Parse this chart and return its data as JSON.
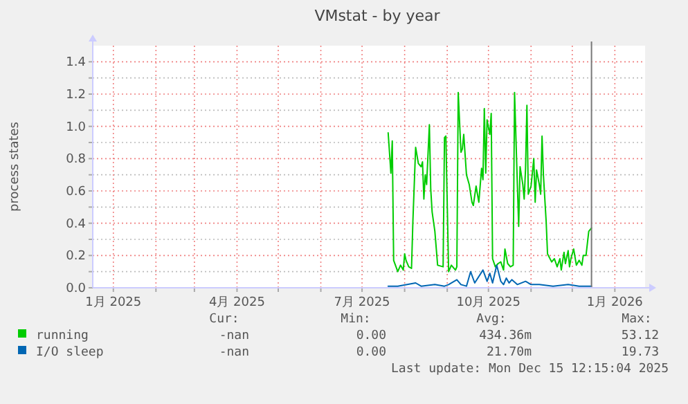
{
  "chart_data": {
    "type": "line",
    "title": "VMstat - by year",
    "ylabel": "process states",
    "xlim": [
      "2024-12-17",
      "2026-01-23"
    ],
    "xticks": [
      {
        "value": "2025-01-01",
        "label": "1月 2025"
      },
      {
        "value": "2025-02-01",
        "label": null
      },
      {
        "value": "2025-03-01",
        "label": null
      },
      {
        "value": "2025-04-01",
        "label": "4月 2025"
      },
      {
        "value": "2025-05-01",
        "label": null
      },
      {
        "value": "2025-06-01",
        "label": null
      },
      {
        "value": "2025-07-01",
        "label": "7月 2025"
      },
      {
        "value": "2025-08-01",
        "label": null
      },
      {
        "value": "2025-09-01",
        "label": null
      },
      {
        "value": "2025-10-01",
        "label": "10月 2025"
      },
      {
        "value": "2025-11-01",
        "label": null
      },
      {
        "value": "2025-12-01",
        "label": null
      },
      {
        "value": "2026-01-01",
        "label": "1月 2026"
      }
    ],
    "ylim": [
      0,
      1.5
    ],
    "yticks": [
      {
        "value": 0,
        "label": "0.0"
      },
      {
        "value": 0.1,
        "label": null
      },
      {
        "value": 0.2,
        "label": "0.2"
      },
      {
        "value": 0.3,
        "label": null
      },
      {
        "value": 0.4,
        "label": "0.4"
      },
      {
        "value": 0.5,
        "label": null
      },
      {
        "value": 0.6,
        "label": "0.6"
      },
      {
        "value": 0.7,
        "label": null
      },
      {
        "value": 0.8,
        "label": "0.8"
      },
      {
        "value": 0.9,
        "label": null
      },
      {
        "value": 1.0,
        "label": "1.0"
      },
      {
        "value": 1.1,
        "label": null
      },
      {
        "value": 1.2,
        "label": "1.2"
      },
      {
        "value": 1.3,
        "label": null
      },
      {
        "value": 1.4,
        "label": "1.4"
      }
    ],
    "grid": true,
    "legend": "bottom",
    "ref_lines": [
      {
        "axis": "x",
        "value": "2025-12-15",
        "color": "#777777"
      }
    ],
    "series": [
      {
        "name": "running",
        "color": "#00cc00",
        "x": [
          "2025-07-20",
          "2025-07-22",
          "2025-07-23",
          "2025-07-24",
          "2025-07-27",
          "2025-07-29",
          "2025-07-31",
          "2025-08-01",
          "2025-08-02",
          "2025-08-04",
          "2025-08-06",
          "2025-08-07",
          "2025-08-09",
          "2025-08-11",
          "2025-08-13",
          "2025-08-14",
          "2025-08-15",
          "2025-08-16",
          "2025-08-17",
          "2025-08-19",
          "2025-08-20",
          "2025-08-21",
          "2025-08-23",
          "2025-08-25",
          "2025-08-29",
          "2025-08-30",
          "2025-08-31",
          "2025-09-02",
          "2025-09-04",
          "2025-09-07",
          "2025-09-08",
          "2025-09-09",
          "2025-09-11",
          "2025-09-12",
          "2025-09-13",
          "2025-09-15",
          "2025-09-17",
          "2025-09-19",
          "2025-09-20",
          "2025-09-22",
          "2025-09-24",
          "2025-09-26",
          "2025-09-27",
          "2025-09-28",
          "2025-09-29",
          "2025-09-30",
          "2025-10-02",
          "2025-10-03",
          "2025-10-04",
          "2025-10-06",
          "2025-10-08",
          "2025-10-10",
          "2025-10-12",
          "2025-10-13",
          "2025-10-15",
          "2025-10-17",
          "2025-10-19",
          "2025-10-20",
          "2025-10-22",
          "2025-10-23",
          "2025-10-24",
          "2025-10-26",
          "2025-10-27",
          "2025-10-28",
          "2025-10-29",
          "2025-10-30",
          "2025-11-01",
          "2025-11-03",
          "2025-11-04",
          "2025-11-05",
          "2025-11-07",
          "2025-11-08",
          "2025-11-09",
          "2025-11-10",
          "2025-11-12",
          "2025-11-13",
          "2025-11-16",
          "2025-11-18",
          "2025-11-20",
          "2025-11-22",
          "2025-11-23",
          "2025-11-25",
          "2025-11-26",
          "2025-11-28",
          "2025-11-29",
          "2025-11-30",
          "2025-12-02",
          "2025-12-04",
          "2025-12-06",
          "2025-12-08",
          "2025-12-09",
          "2025-12-11",
          "2025-12-13",
          "2025-12-15"
        ],
        "values": [
          0.96,
          0.71,
          0.91,
          0.17,
          0.1,
          0.14,
          0.11,
          0.21,
          0.17,
          0.13,
          0.12,
          0.41,
          0.87,
          0.77,
          0.75,
          0.78,
          0.55,
          0.7,
          0.64,
          1.01,
          0.61,
          0.47,
          0.35,
          0.14,
          0.13,
          0.93,
          0.94,
          0.1,
          0.14,
          0.11,
          0.13,
          1.21,
          0.84,
          0.86,
          0.95,
          0.7,
          0.64,
          0.53,
          0.51,
          0.63,
          0.53,
          0.74,
          0.67,
          1.11,
          0.71,
          1.04,
          0.95,
          1.08,
          0.18,
          0.13,
          0.15,
          0.16,
          0.11,
          0.24,
          0.15,
          0.13,
          0.14,
          1.21,
          0.65,
          0.38,
          0.75,
          0.64,
          0.55,
          0.74,
          1.13,
          0.58,
          0.63,
          0.8,
          0.53,
          0.73,
          0.64,
          0.58,
          0.94,
          0.7,
          0.41,
          0.21,
          0.16,
          0.18,
          0.13,
          0.18,
          0.11,
          0.22,
          0.15,
          0.23,
          0.13,
          0.18,
          0.24,
          0.14,
          0.17,
          0.14,
          0.2,
          0.2,
          0.35,
          0.37
        ]
      },
      {
        "name": "I/O sleep",
        "color": "#0066b3",
        "x": [
          "2025-07-20",
          "2025-07-27",
          "2025-08-09",
          "2025-08-13",
          "2025-08-23",
          "2025-08-30",
          "2025-09-02",
          "2025-09-08",
          "2025-09-11",
          "2025-09-15",
          "2025-09-18",
          "2025-09-21",
          "2025-09-27",
          "2025-09-30",
          "2025-10-02",
          "2025-10-04",
          "2025-10-07",
          "2025-10-10",
          "2025-10-12",
          "2025-10-14",
          "2025-10-16",
          "2025-10-18",
          "2025-10-22",
          "2025-10-28",
          "2025-11-01",
          "2025-11-07",
          "2025-11-17",
          "2025-11-28",
          "2025-12-06",
          "2025-12-15"
        ],
        "values": [
          0.01,
          0.01,
          0.03,
          0.01,
          0.02,
          0.01,
          0.02,
          0.05,
          0.02,
          0.01,
          0.1,
          0.03,
          0.11,
          0.04,
          0.09,
          0.03,
          0.14,
          0.04,
          0.02,
          0.06,
          0.03,
          0.05,
          0.02,
          0.04,
          0.02,
          0.02,
          0.01,
          0.02,
          0.01,
          0.01
        ]
      }
    ],
    "annotations": [
      "Cur:",
      "Min:",
      "Avg:",
      "Max:",
      "-nan",
      "0.00",
      "434.36m",
      "53.12",
      "-nan",
      "0.00",
      "21.70m",
      "19.73",
      "Last update: Mon Dec 15 12:15:04 2025"
    ]
  }
}
